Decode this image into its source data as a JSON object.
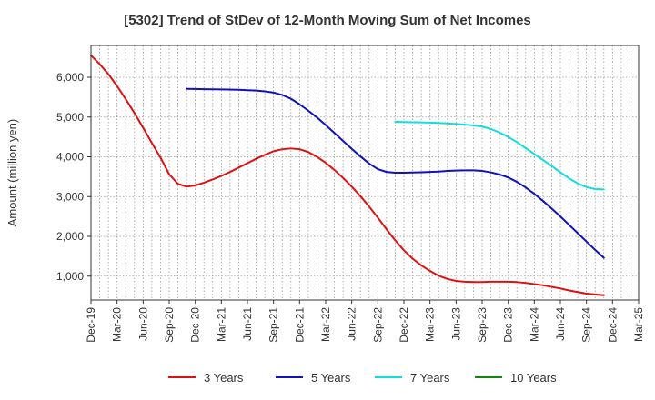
{
  "chart_data": {
    "type": "line",
    "title": "[5302]  Trend of StDev of 12-Month Moving Sum of Net Incomes",
    "ylabel": "Amount (million yen)",
    "xlabel": "",
    "ylim": [
      400,
      6800
    ],
    "yticks": [
      1000,
      2000,
      3000,
      4000,
      5000,
      6000
    ],
    "ytick_labels": [
      "1,000",
      "2,000",
      "3,000",
      "4,000",
      "5,000",
      "6,000"
    ],
    "x_range": [
      "2019-12",
      "2025-03"
    ],
    "xtick_labels": [
      "Dec-19",
      "Mar-20",
      "Jun-20",
      "Sep-20",
      "Dec-20",
      "Mar-21",
      "Jun-21",
      "Sep-21",
      "Dec-21",
      "Mar-22",
      "Jun-22",
      "Sep-22",
      "Dec-22",
      "Mar-23",
      "Jun-23",
      "Sep-23",
      "Dec-23",
      "Mar-24",
      "Jun-24",
      "Sep-24",
      "Dec-24",
      "Mar-25"
    ],
    "grid": true,
    "legend_position": "bottom",
    "series": [
      {
        "name": "3 Years",
        "color": "#dd1111",
        "points": [
          [
            "2019-12",
            6550
          ],
          [
            "2020-01",
            6330
          ],
          [
            "2020-02",
            6080
          ],
          [
            "2020-03",
            5780
          ],
          [
            "2020-04",
            5450
          ],
          [
            "2020-05",
            5100
          ],
          [
            "2020-06",
            4730
          ],
          [
            "2020-07",
            4350
          ],
          [
            "2020-08",
            3980
          ],
          [
            "2020-09",
            3560
          ],
          [
            "2020-10",
            3320
          ],
          [
            "2020-11",
            3250
          ],
          [
            "2020-12",
            3280
          ],
          [
            "2021-01",
            3350
          ],
          [
            "2021-02",
            3430
          ],
          [
            "2021-03",
            3520
          ],
          [
            "2021-04",
            3620
          ],
          [
            "2021-05",
            3730
          ],
          [
            "2021-06",
            3840
          ],
          [
            "2021-07",
            3950
          ],
          [
            "2021-08",
            4050
          ],
          [
            "2021-09",
            4140
          ],
          [
            "2021-10",
            4190
          ],
          [
            "2021-11",
            4210
          ],
          [
            "2021-12",
            4190
          ],
          [
            "2022-01",
            4120
          ],
          [
            "2022-02",
            4000
          ],
          [
            "2022-03",
            3850
          ],
          [
            "2022-04",
            3670
          ],
          [
            "2022-05",
            3470
          ],
          [
            "2022-06",
            3250
          ],
          [
            "2022-07",
            3010
          ],
          [
            "2022-08",
            2750
          ],
          [
            "2022-09",
            2470
          ],
          [
            "2022-10",
            2180
          ],
          [
            "2022-11",
            1900
          ],
          [
            "2022-12",
            1650
          ],
          [
            "2023-01",
            1440
          ],
          [
            "2023-02",
            1270
          ],
          [
            "2023-03",
            1130
          ],
          [
            "2023-04",
            1010
          ],
          [
            "2023-05",
            930
          ],
          [
            "2023-06",
            880
          ],
          [
            "2023-07",
            860
          ],
          [
            "2023-08",
            850
          ],
          [
            "2023-09",
            850
          ],
          [
            "2023-10",
            860
          ],
          [
            "2023-11",
            860
          ],
          [
            "2023-12",
            860
          ],
          [
            "2024-01",
            850
          ],
          [
            "2024-02",
            830
          ],
          [
            "2024-03",
            800
          ],
          [
            "2024-04",
            770
          ],
          [
            "2024-05",
            730
          ],
          [
            "2024-06",
            690
          ],
          [
            "2024-07",
            640
          ],
          [
            "2024-08",
            600
          ],
          [
            "2024-09",
            560
          ],
          [
            "2024-10",
            540
          ],
          [
            "2024-11",
            520
          ]
        ]
      },
      {
        "name": "5 Years",
        "color": "#1111bb",
        "points": [
          [
            "2020-11",
            5710
          ],
          [
            "2020-12",
            5705
          ],
          [
            "2021-01",
            5700
          ],
          [
            "2021-02",
            5698
          ],
          [
            "2021-03",
            5695
          ],
          [
            "2021-04",
            5690
          ],
          [
            "2021-05",
            5685
          ],
          [
            "2021-06",
            5675
          ],
          [
            "2021-07",
            5665
          ],
          [
            "2021-08",
            5645
          ],
          [
            "2021-09",
            5615
          ],
          [
            "2021-10",
            5555
          ],
          [
            "2021-11",
            5460
          ],
          [
            "2021-12",
            5320
          ],
          [
            "2022-01",
            5160
          ],
          [
            "2022-02",
            4990
          ],
          [
            "2022-03",
            4800
          ],
          [
            "2022-04",
            4600
          ],
          [
            "2022-05",
            4400
          ],
          [
            "2022-06",
            4200
          ],
          [
            "2022-07",
            4010
          ],
          [
            "2022-08",
            3830
          ],
          [
            "2022-09",
            3690
          ],
          [
            "2022-10",
            3620
          ],
          [
            "2022-11",
            3600
          ],
          [
            "2022-12",
            3600
          ],
          [
            "2023-01",
            3605
          ],
          [
            "2023-02",
            3610
          ],
          [
            "2023-03",
            3620
          ],
          [
            "2023-04",
            3630
          ],
          [
            "2023-05",
            3645
          ],
          [
            "2023-06",
            3655
          ],
          [
            "2023-07",
            3660
          ],
          [
            "2023-08",
            3660
          ],
          [
            "2023-09",
            3645
          ],
          [
            "2023-10",
            3610
          ],
          [
            "2023-11",
            3555
          ],
          [
            "2023-12",
            3480
          ],
          [
            "2024-01",
            3370
          ],
          [
            "2024-02",
            3230
          ],
          [
            "2024-03",
            3070
          ],
          [
            "2024-04",
            2890
          ],
          [
            "2024-05",
            2700
          ],
          [
            "2024-06",
            2500
          ],
          [
            "2024-07",
            2290
          ],
          [
            "2024-08",
            2080
          ],
          [
            "2024-09",
            1870
          ],
          [
            "2024-10",
            1660
          ],
          [
            "2024-11",
            1460
          ]
        ]
      },
      {
        "name": "7 Years",
        "color": "#11dddd",
        "points": [
          [
            "2022-11",
            4880
          ],
          [
            "2022-12",
            4875
          ],
          [
            "2023-01",
            4870
          ],
          [
            "2023-02",
            4865
          ],
          [
            "2023-03",
            4860
          ],
          [
            "2023-04",
            4850
          ],
          [
            "2023-05",
            4840
          ],
          [
            "2023-06",
            4825
          ],
          [
            "2023-07",
            4810
          ],
          [
            "2023-08",
            4790
          ],
          [
            "2023-09",
            4760
          ],
          [
            "2023-10",
            4700
          ],
          [
            "2023-11",
            4610
          ],
          [
            "2023-12",
            4500
          ],
          [
            "2024-01",
            4370
          ],
          [
            "2024-02",
            4220
          ],
          [
            "2024-03",
            4070
          ],
          [
            "2024-04",
            3920
          ],
          [
            "2024-05",
            3770
          ],
          [
            "2024-06",
            3610
          ],
          [
            "2024-07",
            3460
          ],
          [
            "2024-08",
            3330
          ],
          [
            "2024-09",
            3240
          ],
          [
            "2024-10",
            3190
          ],
          [
            "2024-11",
            3180
          ]
        ]
      },
      {
        "name": "10 Years",
        "color": "#118811",
        "points": []
      }
    ]
  }
}
